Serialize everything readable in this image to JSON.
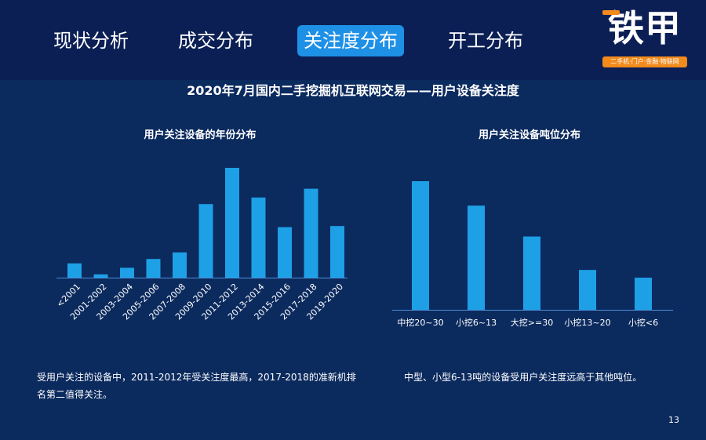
{
  "tabs": [
    {
      "label": "现状分析"
    },
    {
      "label": "成交分布"
    },
    {
      "label": "关注度分布",
      "active": true
    },
    {
      "label": "开工分布"
    }
  ],
  "logo": {
    "main": "铁甲",
    "tagline": "二手机·门户·金融·物联网"
  },
  "page_title": "2020年7月国内二手挖掘机互联网交易——用户设备关注度",
  "colors": {
    "bar": "#1ea0e6",
    "axis": "#4f8fd6",
    "active_tab": "#1e90e6",
    "logo_accent": "#f28a1c"
  },
  "chart_data": [
    {
      "type": "bar",
      "title": "用户关注设备的年份分布",
      "xlabel": "",
      "ylabel": "",
      "categories": [
        "<2001",
        "2001-2002",
        "2003-2004",
        "2005-2006",
        "2007-2008",
        "2009-2010",
        "2011-2012",
        "2013-2014",
        "2015-2016",
        "2017-2018",
        "2019-2020"
      ],
      "values": [
        13,
        3,
        9,
        17,
        23,
        67,
        100,
        73,
        46,
        81,
        47
      ],
      "ylim": [
        0,
        100
      ]
    },
    {
      "type": "bar",
      "title": "用户关注设备吨位分布",
      "xlabel": "",
      "ylabel": "",
      "categories": [
        "中挖20~30",
        "小挖6~13",
        "大挖>=30",
        "小挖13~20",
        "小挖<6"
      ],
      "values": [
        100,
        81,
        57,
        31,
        25
      ],
      "ylim": [
        0,
        100
      ]
    }
  ],
  "notes": {
    "left": "受用户关注的设备中，2011-2012年受关注度最高，2017-2018的准新机排名第二值得关注。",
    "right": "中型、小型6-13吨的设备受用户关注度远高于其他吨位。"
  },
  "page_number": "13"
}
